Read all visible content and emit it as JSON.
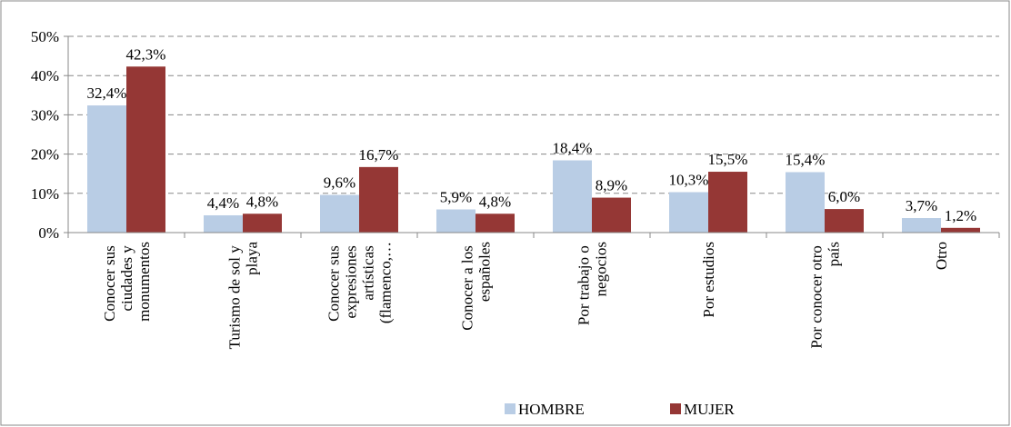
{
  "chart_data": {
    "type": "bar",
    "categories": [
      "Conocer sus ciudades y monumentos",
      "Turismo de sol y playa",
      "Conocer sus expresiones artísticas (flamenco,…",
      "Conocer a los españoles",
      "Por trabajo o negocios",
      "Por estudios",
      "Por conocer otro país",
      "Otro"
    ],
    "series": [
      {
        "name": "HOMBRE",
        "color": "#b9cde5",
        "values": [
          32.4,
          4.4,
          9.6,
          5.9,
          18.4,
          10.3,
          15.4,
          3.7
        ],
        "value_labels": [
          "32,4%",
          "4,4%",
          "9,6%",
          "5,9%",
          "18,4%",
          "10,3%",
          "15,4%",
          "3,7%"
        ]
      },
      {
        "name": "MUJER",
        "color": "#953735",
        "values": [
          42.3,
          4.8,
          16.7,
          4.8,
          8.9,
          15.5,
          6.0,
          1.2
        ],
        "value_labels": [
          "42,3%",
          "4,8%",
          "16,7%",
          "4,8%",
          "8,9%",
          "15,5%",
          "6,0%",
          "1,2%"
        ]
      }
    ],
    "ylim": [
      0,
      50
    ],
    "yticks": [
      {
        "value": 0,
        "label": "0%"
      },
      {
        "value": 10,
        "label": "10%"
      },
      {
        "value": 20,
        "label": "20%"
      },
      {
        "value": 30,
        "label": "30%"
      },
      {
        "value": 40,
        "label": "40%"
      },
      {
        "value": 50,
        "label": "50%"
      }
    ],
    "grid": true,
    "legend": "bottom"
  }
}
